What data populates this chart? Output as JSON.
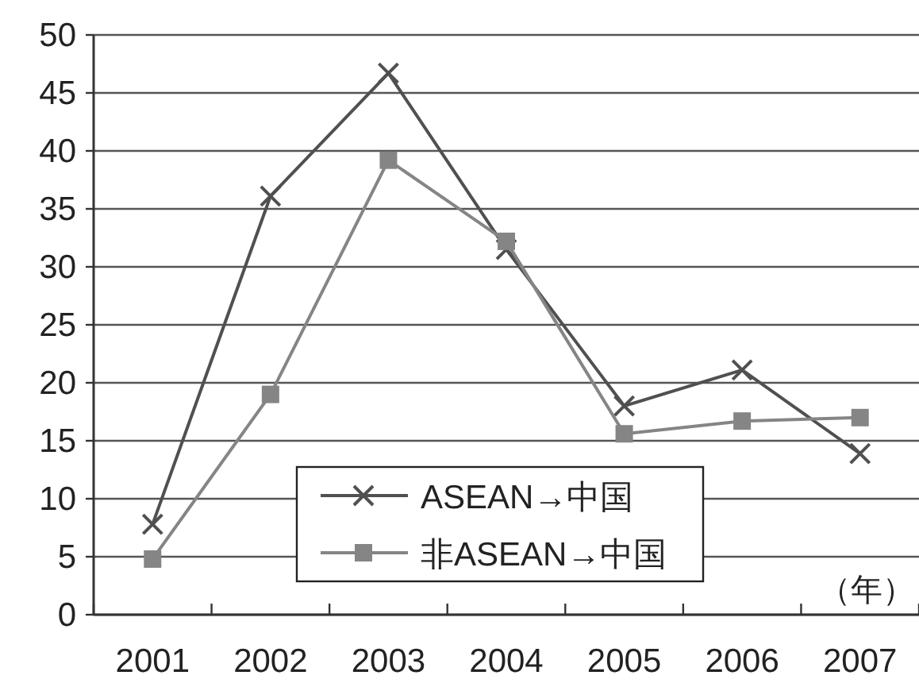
{
  "chart_data": {
    "type": "line",
    "categories": [
      "2001",
      "2002",
      "2003",
      "2004",
      "2005",
      "2006",
      "2007"
    ],
    "series": [
      {
        "name": "ASEAN→中国",
        "color": "#505050",
        "marker": "cross",
        "values": [
          7.8,
          36.1,
          46.7,
          31.5,
          18.0,
          21.1,
          13.9
        ]
      },
      {
        "name": "非ASEAN→中国",
        "color": "#858585",
        "marker": "square",
        "values": [
          4.8,
          19.0,
          39.2,
          32.2,
          15.6,
          16.7,
          17.0
        ]
      }
    ],
    "ylim": [
      0,
      50
    ],
    "yticks": [
      0,
      5,
      10,
      15,
      20,
      25,
      30,
      35,
      40,
      45,
      50
    ],
    "grid": "y",
    "legend": "bottom",
    "annotations": [
      "（年）"
    ]
  }
}
